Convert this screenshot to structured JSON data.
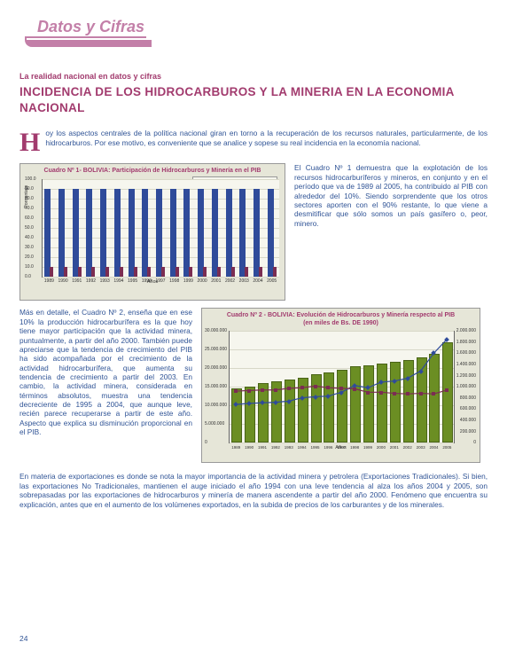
{
  "header": {
    "brand": "Datos y Cifras"
  },
  "subtitle": "La realidad nacional en datos y cifras",
  "title": "INCIDENCIA DE LOS HIDROCARBUROS Y LA MINERIA EN LA ECONOMIA NACIONAL",
  "dropcap": "H",
  "intro": "oy los aspectos centrales de la política nacional giran en torno a la recuperación de los recursos naturales, particularmente, de los hidrocarburos. Por ese motivo, es conveniente que se analice y sopese su real incidencia en la economía nacional.",
  "chart1": {
    "type": "bar",
    "title": "Cuadro Nº 1- BOLIVIA: Participación de Hidrocarburos y Minería en el PIB",
    "ylabel": "Porcentaje",
    "xlabel": "Años",
    "legend": [
      "otros sectores",
      "sectores mineros e hidrocarburos"
    ],
    "legend_colors": [
      "#2f4b9a",
      "#7b2d52"
    ],
    "background_color": "#e6e6d8",
    "plot_bg": "#f6f6ee",
    "grid_color": "#d8d8c8",
    "ylim": [
      0,
      100
    ],
    "ytick_step": 10,
    "categories": [
      "1989",
      "1990",
      "1991",
      "1992",
      "1993",
      "1994",
      "1995",
      "1996",
      "1997",
      "1998",
      "1999",
      "2000",
      "2001",
      "2002",
      "2003",
      "2004",
      "2005"
    ],
    "series_a": [
      90,
      90,
      90,
      90,
      90,
      90,
      90,
      90,
      90,
      90,
      90,
      90,
      90,
      90,
      90,
      90,
      90
    ],
    "series_b": [
      10,
      10,
      10,
      10,
      10,
      10,
      10,
      10,
      10,
      10,
      10,
      10,
      10,
      10,
      10,
      10,
      10
    ],
    "colors": {
      "a": "#2f4b9a",
      "b": "#7b2d52"
    }
  },
  "side1": "El Cuadro Nº 1 demuestra que la explotación de los recursos hidrocarburíferos y mineros, en conjunto y en el período que va de 1989 al 2005, ha contribuido al PIB con alrededor del 10%. Siendo sorprendente que los otros sectores aporten con el 90% restante, lo que viene a desmitificar que sólo somos un país gasífero o, peor, minero.",
  "side2": "Más en detalle, el Cuadro Nº 2, enseña que en ese 10% la producción hidrocarburífera es la que hoy tiene mayor participación que la actividad minera, puntualmente, a partir del año 2000. También puede apreciarse que la tendencia de crecimiento del PIB ha sido acompañada por el crecimiento de la actividad hidrocarburífera, que aumenta su tendencia de crecimiento a partir del 2003. En cambio, la actividad minera, considerada en términos absolutos, muestra una tendencia decreciente de 1995 a 2004, que aunque leve, recién parece recuperarse a partir de este año. Aspecto que explica su disminución proporcional en el PIB.",
  "chart2": {
    "type": "combo",
    "title": "Cuadro Nº 2 - BOLIVIA: Evolución de Hidrocarburos y Minería respecto al PIB",
    "subtitle": "(en miles de Bs. DE 1990)",
    "xlabel": "Años",
    "legend": [
      "PIB",
      "Hidrocarburos",
      "Minería"
    ],
    "legend_colors": [
      "#6b8e23",
      "#2f4b9a",
      "#7b2d52"
    ],
    "background_color": "#e6e6d8",
    "plot_bg": "#f6f6ee",
    "grid_color": "#d8d8c8",
    "ylim_left": [
      0,
      30000000
    ],
    "ytick_left": [
      0,
      5000000,
      10000000,
      15000000,
      20000000,
      25000000,
      30000000
    ],
    "ylim_right": [
      0,
      2000000
    ],
    "ytick_right": [
      0,
      200000,
      400000,
      600000,
      800000,
      1000000,
      1200000,
      1400000,
      1600000,
      1800000,
      2000000
    ],
    "categories": [
      "1989",
      "1990",
      "1991",
      "1992",
      "1993",
      "1994",
      "1995",
      "1996",
      "1997",
      "1998",
      "1999",
      "2000",
      "2001",
      "2002",
      "2003",
      "2004",
      "2005"
    ],
    "pib": [
      14000000,
      14500000,
      15500000,
      16000000,
      16500000,
      17000000,
      17800000,
      18500000,
      19200000,
      20000000,
      20200000,
      20800000,
      21200000,
      21800000,
      22500000,
      23500000,
      26500000
    ],
    "hidro": [
      680000,
      700000,
      710000,
      720000,
      740000,
      800000,
      820000,
      830000,
      900000,
      1020000,
      980000,
      1080000,
      1100000,
      1150000,
      1280000,
      1600000,
      1850000
    ],
    "mineria": [
      920000,
      930000,
      940000,
      940000,
      970000,
      980000,
      1010000,
      980000,
      970000,
      960000,
      900000,
      900000,
      880000,
      870000,
      880000,
      870000,
      940000
    ],
    "bar_color": "#6b8e23",
    "line_hidro_color": "#2f4b9a",
    "line_mineria_color": "#7b2d52"
  },
  "bottom": "En materia de exportaciones es donde se nota la mayor importancia de la actividad minera y petrolera (Exportaciones Tradicionales). Si bien, las exportaciones No Tradicionales, mantienen el auge iniciado el año 1994 con una leve tendencia al alza los años 2004 y 2005, son sobrepasadas por las exportaciones de hidrocarburos y minería de manera ascendente a partir del año 2000. Fenómeno que encuentra su explicación, antes que en el aumento de los volúmenes exportados, en la subida de precios de los carburantes y de los minerales.",
  "page_number": "24"
}
